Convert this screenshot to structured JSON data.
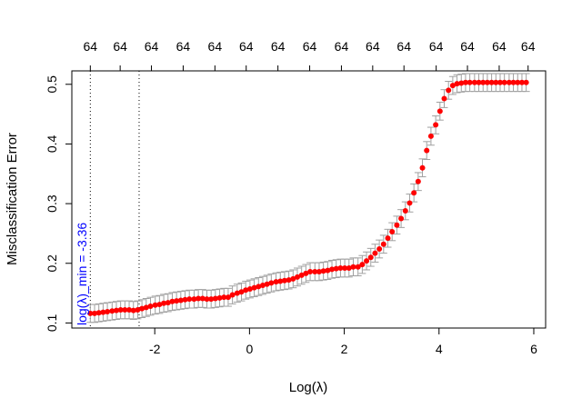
{
  "chart_data": {
    "type": "scatter",
    "title": "",
    "xlabel": "Log(λ)",
    "ylabel": "Misclassification Error",
    "xlim": [
      -3.75,
      6.25
    ],
    "ylim": [
      0.0915,
      0.5225
    ],
    "x_ticks": [
      -2,
      0,
      2,
      4,
      6
    ],
    "x_tick_labels": [
      "-2",
      "0",
      "2",
      "4",
      "6"
    ],
    "y_ticks": [
      0.1,
      0.2,
      0.3,
      0.4,
      0.5
    ],
    "y_tick_labels": [
      "0.1",
      "0.2",
      "0.3",
      "0.4",
      "0.5"
    ],
    "top_axis_ticks": [
      -3.36,
      -2.73,
      -2.07,
      -1.4,
      -0.73,
      -0.07,
      0.6,
      1.27,
      1.94,
      2.6,
      3.26,
      3.94,
      4.6,
      5.27,
      5.88
    ],
    "top_axis_labels": [
      "64",
      "64",
      "64",
      "64",
      "64",
      "64",
      "64",
      "64",
      "64",
      "64",
      "64",
      "64",
      "64",
      "64",
      "64"
    ],
    "vlines": [
      -3.36,
      -2.33
    ],
    "annotation": {
      "text": "log(λ)_min = -3.36",
      "color": "#0000ff"
    },
    "grid": false,
    "point_color": "#ff0000",
    "errorbar_color": "#a0a0a0",
    "x": [
      -3.36,
      -3.27,
      -3.18,
      -3.09,
      -3.0,
      -2.9,
      -2.81,
      -2.72,
      -2.63,
      -2.54,
      -2.45,
      -2.36,
      -2.27,
      -2.18,
      -2.09,
      -1.99,
      -1.9,
      -1.81,
      -1.72,
      -1.63,
      -1.54,
      -1.45,
      -1.36,
      -1.27,
      -1.17,
      -1.08,
      -0.99,
      -0.9,
      -0.81,
      -0.72,
      -0.63,
      -0.54,
      -0.45,
      -0.36,
      -0.26,
      -0.17,
      -0.08,
      0.01,
      0.1,
      0.19,
      0.28,
      0.37,
      0.46,
      0.56,
      0.65,
      0.74,
      0.83,
      0.92,
      1.01,
      1.1,
      1.19,
      1.28,
      1.38,
      1.47,
      1.56,
      1.65,
      1.74,
      1.83,
      1.92,
      2.01,
      2.1,
      2.19,
      2.29,
      2.38,
      2.47,
      2.56,
      2.65,
      2.74,
      2.83,
      2.92,
      3.01,
      3.11,
      3.2,
      3.29,
      3.38,
      3.47,
      3.56,
      3.65,
      3.74,
      3.83,
      3.93,
      4.02,
      4.11,
      4.2,
      4.29,
      4.38,
      4.47,
      4.56,
      4.65,
      4.75,
      4.84,
      4.93,
      5.02,
      5.11,
      5.2,
      5.29,
      5.38,
      5.48,
      5.57,
      5.66,
      5.75,
      5.84
    ],
    "y": [
      0.116,
      0.116,
      0.117,
      0.118,
      0.119,
      0.12,
      0.121,
      0.122,
      0.122,
      0.122,
      0.121,
      0.122,
      0.124,
      0.126,
      0.128,
      0.13,
      0.131,
      0.133,
      0.134,
      0.136,
      0.137,
      0.138,
      0.139,
      0.14,
      0.14,
      0.141,
      0.141,
      0.14,
      0.14,
      0.141,
      0.142,
      0.143,
      0.143,
      0.147,
      0.15,
      0.152,
      0.155,
      0.157,
      0.159,
      0.161,
      0.163,
      0.165,
      0.167,
      0.169,
      0.17,
      0.171,
      0.172,
      0.174,
      0.177,
      0.18,
      0.183,
      0.186,
      0.186,
      0.186,
      0.187,
      0.188,
      0.19,
      0.191,
      0.192,
      0.192,
      0.192,
      0.194,
      0.194,
      0.198,
      0.204,
      0.21,
      0.217,
      0.224,
      0.232,
      0.242,
      0.253,
      0.264,
      0.275,
      0.288,
      0.301,
      0.318,
      0.337,
      0.36,
      0.389,
      0.413,
      0.432,
      0.455,
      0.476,
      0.49,
      0.498,
      0.501,
      0.502,
      0.503,
      0.503,
      0.503,
      0.503,
      0.503,
      0.503,
      0.503,
      0.503,
      0.503,
      0.503,
      0.503,
      0.503,
      0.503,
      0.503,
      0.503
    ],
    "error_bar_halfwidth": 0.015
  }
}
